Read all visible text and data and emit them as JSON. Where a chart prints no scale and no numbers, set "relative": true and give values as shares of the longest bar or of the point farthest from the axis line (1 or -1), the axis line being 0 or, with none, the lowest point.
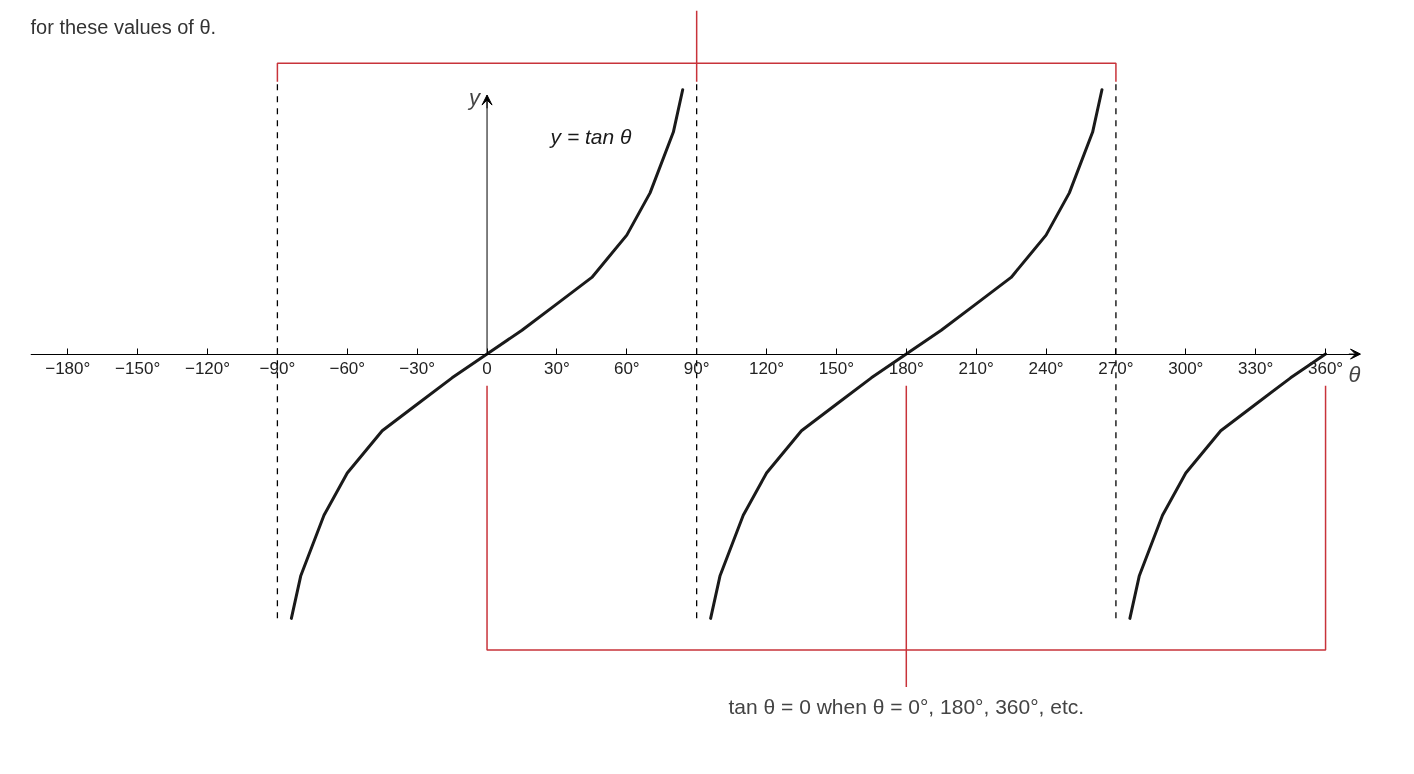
{
  "chart_data": {
    "type": "line",
    "relative": true,
    "xlabel": "θ",
    "ylabel": "y",
    "tick_labels": "x",
    "grid": false,
    "marker": "none",
    "line_style": "solid",
    "xlim": [
      -196,
      375
    ],
    "xticks": [
      {
        "value": -180,
        "label": "−180°"
      },
      {
        "value": -150,
        "label": "−150°"
      },
      {
        "value": -120,
        "label": "−120°"
      },
      {
        "value": -90,
        "label": "−90°"
      },
      {
        "value": -60,
        "label": "−60°"
      },
      {
        "value": -30,
        "label": "−30°"
      },
      {
        "value": 0,
        "label": "0"
      },
      {
        "value": 30,
        "label": "30°"
      },
      {
        "value": 60,
        "label": "60°"
      },
      {
        "value": 90,
        "label": "90°"
      },
      {
        "value": 120,
        "label": "120°"
      },
      {
        "value": 150,
        "label": "150°"
      },
      {
        "value": 180,
        "label": "180°"
      },
      {
        "value": 210,
        "label": "210°"
      },
      {
        "value": 240,
        "label": "240°"
      },
      {
        "value": 270,
        "label": "270°"
      },
      {
        "value": 300,
        "label": "300°"
      },
      {
        "value": 330,
        "label": "330°"
      },
      {
        "value": 360,
        "label": "360°"
      }
    ],
    "series": [
      {
        "name": "y = tan θ",
        "color": "#1a1a1a",
        "x": [
          -84,
          -80,
          -70,
          -60,
          -45,
          -30,
          -15,
          0,
          15,
          30,
          45,
          60,
          70,
          80,
          84
        ],
        "values": [
          -1.0,
          -0.84,
          -0.61,
          -0.45,
          -0.29,
          -0.19,
          -0.09,
          0,
          0.09,
          0.19,
          0.29,
          0.45,
          0.61,
          0.84,
          1.0
        ]
      },
      {
        "color": "#1a1a1a",
        "x": [
          96,
          100,
          110,
          120,
          135,
          150,
          165,
          180,
          195,
          210,
          225,
          240,
          250,
          260,
          264
        ],
        "values": [
          -1.0,
          -0.84,
          -0.61,
          -0.45,
          -0.29,
          -0.19,
          -0.09,
          0,
          0.09,
          0.19,
          0.29,
          0.45,
          0.61,
          0.84,
          1.0
        ]
      },
      {
        "color": "#1a1a1a",
        "x": [
          276,
          280,
          290,
          300,
          315,
          330,
          345,
          360
        ],
        "values": [
          -1.0,
          -0.84,
          -0.61,
          -0.45,
          -0.29,
          -0.19,
          -0.09,
          0
        ]
      }
    ],
    "ref_lines": [
      {
        "axis": "x",
        "value": -90,
        "line_style": "dashed",
        "color": "#000000"
      },
      {
        "axis": "x",
        "value": 90,
        "line_style": "dashed",
        "color": "#000000"
      },
      {
        "axis": "x",
        "value": 270,
        "line_style": "dashed",
        "color": "#000000"
      }
    ],
    "annotations": [
      "for these values of θ.",
      "tan θ = 0 when θ = 0°, 180°, 360°, etc."
    ]
  }
}
